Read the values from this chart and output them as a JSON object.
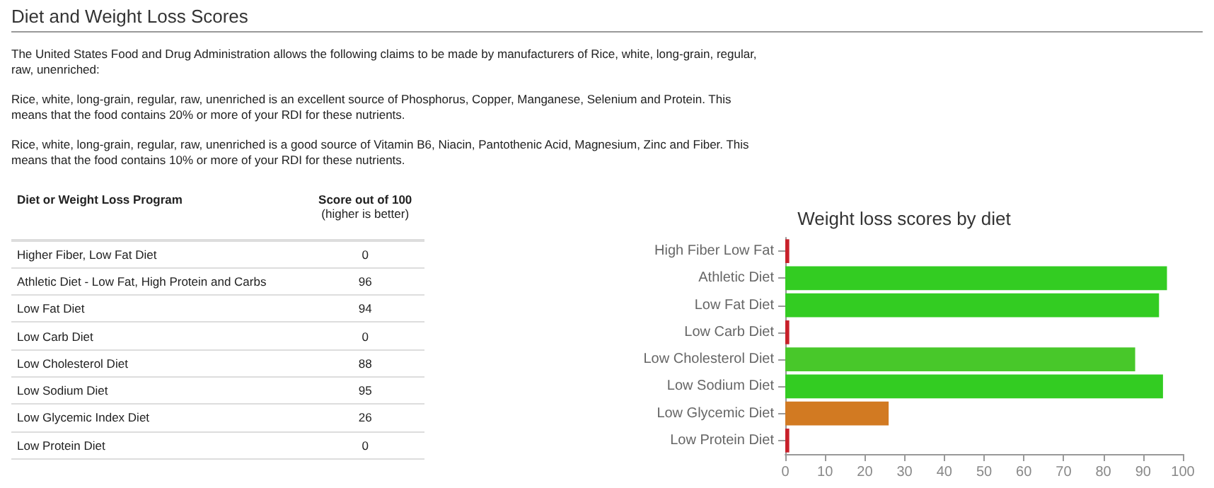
{
  "chart_data": [
    {
      "type": "other",
      "title": "Diet and Weight Loss Scores",
      "annotations": [
        "The United States Food and Drug Administration allows the following claims to be made by manufacturers of Rice, white, long-grain, regular, raw, unenriched:",
        "Rice, white, long-grain, regular, raw, unenriched is an excellent source of Phosphorus, Copper, Manganese, Selenium and Protein. This means that the food contains 20% or more of your RDI for these nutrients.",
        "Rice, white, long-grain, regular, raw, unenriched is a good source of Vitamin B6, Niacin, Pantothenic Acid, Magnesium, Zinc and Fiber. This means that the food contains 10% or more of your RDI for these nutrients."
      ],
      "xlabel": "Diet or Weight Loss Program",
      "ylabel": "Score out of 100\n(higher is better)",
      "categories": [
        "Higher Fiber, Low Fat Diet",
        "Athletic Diet - Low Fat, High Protein and Carbs",
        "Low Fat Diet",
        "Low Carb Diet",
        "Low Cholesterol Diet",
        "Low Sodium Diet",
        "Low Glycemic Index Diet",
        "Low Protein Diet"
      ],
      "values": [
        0,
        96,
        94,
        0,
        88,
        95,
        26,
        0
      ],
      "data_labels": true
    },
    {
      "type": "bar",
      "orientation": "horizontal",
      "title": "Weight loss scores by diet",
      "categories": [
        "High Fiber Low Fat",
        "Athletic Diet",
        "Low Fat Diet",
        "Low Carb Diet",
        "Low Cholesterol Diet",
        "Low Sodium Diet",
        "Low Glycemic Diet",
        "Low Protein Diet"
      ],
      "values": [
        1,
        96,
        94,
        1,
        88,
        95,
        26,
        1
      ],
      "colors": [
        "#c8202a",
        "#33cc22",
        "#33cc22",
        "#c8202a",
        "#48c82a",
        "#33cc22",
        "#d27a22",
        "#c8202a"
      ],
      "xlim": [
        0,
        100
      ],
      "xticks": [
        0,
        10,
        20,
        30,
        40,
        50,
        60,
        70,
        80,
        90,
        100
      ],
      "grid": false
    }
  ]
}
